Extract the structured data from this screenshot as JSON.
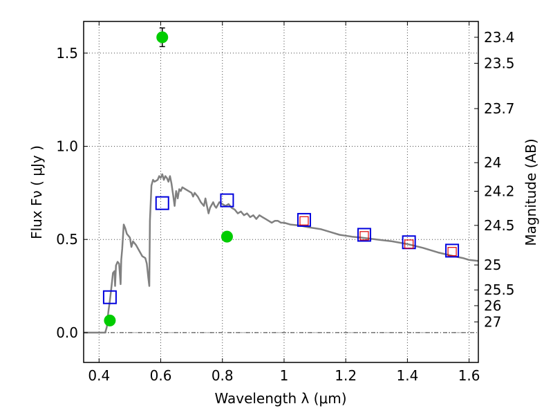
{
  "chart_data": {
    "type": "line",
    "xlabel": "Wavelength  λ (μm)",
    "ylabel": "Flux  Fν  ( μJy )",
    "y2label": "Magnitude (AB)",
    "xlim": [
      0.35,
      1.63
    ],
    "ylim": [
      -0.16,
      1.67
    ],
    "grid": true,
    "x_ticks": [
      {
        "value": 0.4,
        "label": "0.4"
      },
      {
        "value": 0.6,
        "label": "0.6"
      },
      {
        "value": 0.8,
        "label": "0.8"
      },
      {
        "value": 1.0,
        "label": "1"
      },
      {
        "value": 1.2,
        "label": "1.2"
      },
      {
        "value": 1.4,
        "label": "1.4"
      },
      {
        "value": 1.6,
        "label": "1.6"
      }
    ],
    "y_ticks": [
      {
        "value": 0.0,
        "label": "0.0"
      },
      {
        "value": 0.5,
        "label": "0.5"
      },
      {
        "value": 1.0,
        "label": "1.0"
      },
      {
        "value": 1.5,
        "label": "1.5"
      }
    ],
    "y2_ticks": [
      {
        "mag": 23.4,
        "label": "23.4"
      },
      {
        "mag": 23.5,
        "label": "23.5"
      },
      {
        "mag": 23.7,
        "label": "23.7"
      },
      {
        "mag": 24.0,
        "label": "24"
      },
      {
        "mag": 24.2,
        "label": "24.2"
      },
      {
        "mag": 24.5,
        "label": "24.5"
      },
      {
        "mag": 25.0,
        "label": "25"
      },
      {
        "mag": 25.5,
        "label": "25.5"
      },
      {
        "mag": 26.0,
        "label": "26"
      },
      {
        "mag": 27.0,
        "label": "27"
      }
    ],
    "model_sed": {
      "color": "#808080",
      "points": [
        [
          0.35,
          0.0
        ],
        [
          0.42,
          0.0
        ],
        [
          0.425,
          0.03
        ],
        [
          0.43,
          0.11
        ],
        [
          0.435,
          0.17
        ],
        [
          0.44,
          0.24
        ],
        [
          0.445,
          0.32
        ],
        [
          0.45,
          0.33
        ],
        [
          0.452,
          0.25
        ],
        [
          0.455,
          0.36
        ],
        [
          0.46,
          0.38
        ],
        [
          0.465,
          0.37
        ],
        [
          0.47,
          0.26
        ],
        [
          0.472,
          0.39
        ],
        [
          0.475,
          0.45
        ],
        [
          0.48,
          0.58
        ],
        [
          0.485,
          0.56
        ],
        [
          0.49,
          0.53
        ],
        [
          0.5,
          0.51
        ],
        [
          0.505,
          0.46
        ],
        [
          0.51,
          0.49
        ],
        [
          0.52,
          0.47
        ],
        [
          0.53,
          0.44
        ],
        [
          0.54,
          0.41
        ],
        [
          0.55,
          0.4
        ],
        [
          0.555,
          0.37
        ],
        [
          0.56,
          0.29
        ],
        [
          0.563,
          0.25
        ],
        [
          0.565,
          0.6
        ],
        [
          0.57,
          0.79
        ],
        [
          0.575,
          0.82
        ],
        [
          0.58,
          0.81
        ],
        [
          0.59,
          0.82
        ],
        [
          0.595,
          0.84
        ],
        [
          0.6,
          0.83
        ],
        [
          0.605,
          0.85
        ],
        [
          0.61,
          0.82
        ],
        [
          0.615,
          0.84
        ],
        [
          0.62,
          0.83
        ],
        [
          0.625,
          0.81
        ],
        [
          0.63,
          0.84
        ],
        [
          0.635,
          0.8
        ],
        [
          0.64,
          0.74
        ],
        [
          0.645,
          0.68
        ],
        [
          0.65,
          0.76
        ],
        [
          0.655,
          0.72
        ],
        [
          0.66,
          0.77
        ],
        [
          0.665,
          0.76
        ],
        [
          0.67,
          0.78
        ],
        [
          0.68,
          0.77
        ],
        [
          0.69,
          0.76
        ],
        [
          0.7,
          0.75
        ],
        [
          0.705,
          0.73
        ],
        [
          0.71,
          0.75
        ],
        [
          0.715,
          0.74
        ],
        [
          0.72,
          0.73
        ],
        [
          0.73,
          0.7
        ],
        [
          0.74,
          0.68
        ],
        [
          0.745,
          0.72
        ],
        [
          0.75,
          0.68
        ],
        [
          0.755,
          0.64
        ],
        [
          0.76,
          0.67
        ],
        [
          0.77,
          0.7
        ],
        [
          0.775,
          0.68
        ],
        [
          0.78,
          0.67
        ],
        [
          0.79,
          0.7
        ],
        [
          0.8,
          0.69
        ],
        [
          0.81,
          0.68
        ],
        [
          0.82,
          0.69
        ],
        [
          0.83,
          0.67
        ],
        [
          0.84,
          0.66
        ],
        [
          0.85,
          0.64
        ],
        [
          0.86,
          0.65
        ],
        [
          0.87,
          0.63
        ],
        [
          0.88,
          0.64
        ],
        [
          0.89,
          0.62
        ],
        [
          0.9,
          0.63
        ],
        [
          0.91,
          0.61
        ],
        [
          0.92,
          0.63
        ],
        [
          0.93,
          0.62
        ],
        [
          0.94,
          0.61
        ],
        [
          0.95,
          0.6
        ],
        [
          0.96,
          0.59
        ],
        [
          0.97,
          0.6
        ],
        [
          0.98,
          0.6
        ],
        [
          0.99,
          0.59
        ],
        [
          1.0,
          0.59
        ],
        [
          1.02,
          0.58
        ],
        [
          1.05,
          0.575
        ],
        [
          1.08,
          0.565
        ],
        [
          1.1,
          0.56
        ],
        [
          1.12,
          0.555
        ],
        [
          1.15,
          0.54
        ],
        [
          1.18,
          0.525
        ],
        [
          1.2,
          0.52
        ],
        [
          1.22,
          0.515
        ],
        [
          1.25,
          0.51
        ],
        [
          1.3,
          0.5
        ],
        [
          1.35,
          0.49
        ],
        [
          1.4,
          0.475
        ],
        [
          1.45,
          0.455
        ],
        [
          1.5,
          0.43
        ],
        [
          1.55,
          0.41
        ],
        [
          1.58,
          0.4
        ],
        [
          1.6,
          0.39
        ],
        [
          1.63,
          0.385
        ]
      ]
    },
    "observed_flux": {
      "color": "#00cc00",
      "points": [
        {
          "x": 0.435,
          "y": 0.065,
          "err": 0.025
        },
        {
          "x": 0.605,
          "y": 1.585,
          "err": 0.05
        },
        {
          "x": 0.815,
          "y": 0.515,
          "err": 0.025
        }
      ]
    },
    "model_flux_blue": {
      "color": "#0000dd",
      "points": [
        {
          "x": 0.435,
          "y": 0.19
        },
        {
          "x": 0.605,
          "y": 0.695
        },
        {
          "x": 0.815,
          "y": 0.71
        },
        {
          "x": 1.065,
          "y": 0.605
        },
        {
          "x": 1.26,
          "y": 0.525
        },
        {
          "x": 1.405,
          "y": 0.485
        },
        {
          "x": 1.545,
          "y": 0.44
        }
      ]
    },
    "model_flux_red": {
      "color": "#dd0000",
      "points": [
        {
          "x": 1.065,
          "y": 0.6
        },
        {
          "x": 1.26,
          "y": 0.52
        },
        {
          "x": 1.405,
          "y": 0.475
        },
        {
          "x": 1.545,
          "y": 0.435
        }
      ]
    }
  }
}
